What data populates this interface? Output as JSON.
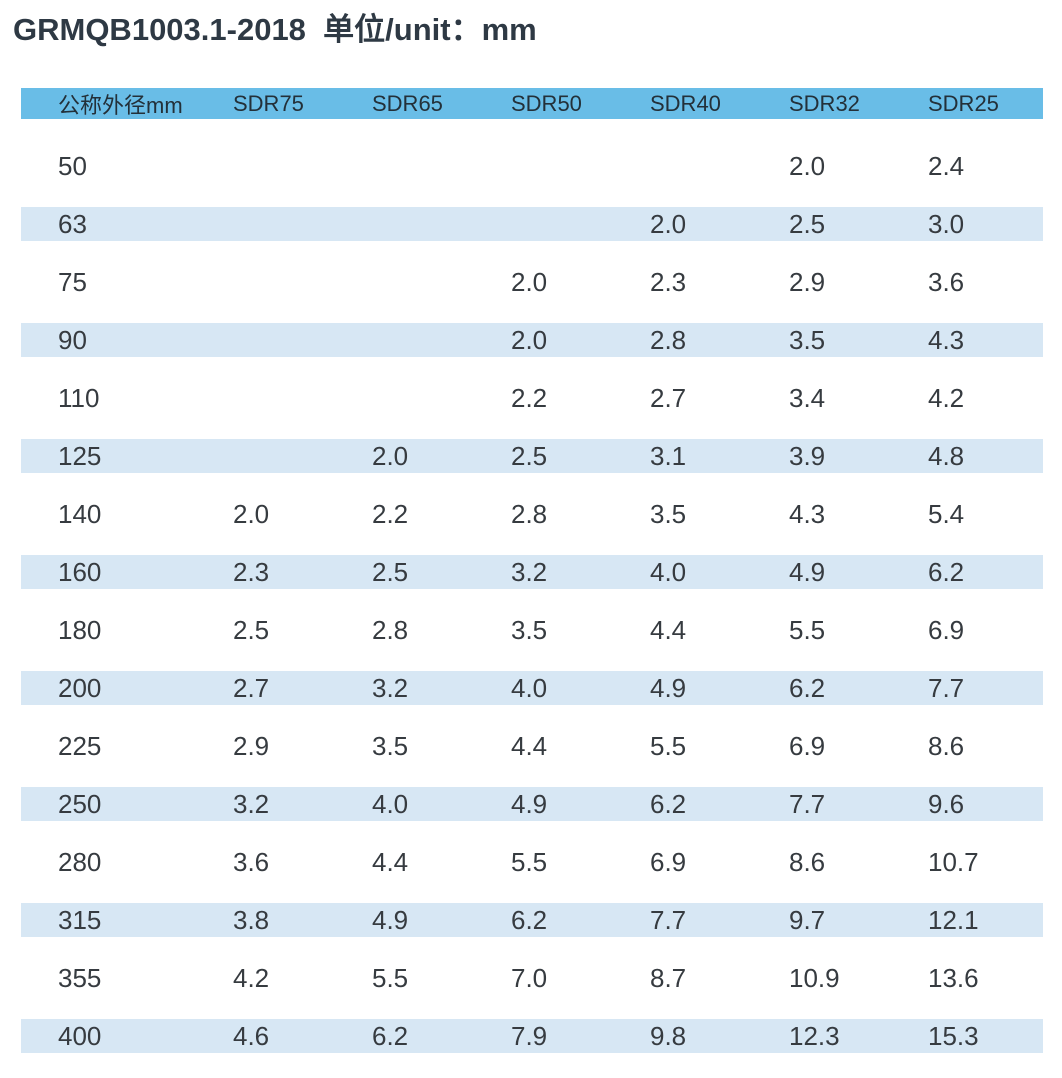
{
  "page": {
    "title": "GRMQB1003.1-2018  单位/unit：mm"
  },
  "table": {
    "columns": [
      {
        "key": "dn",
        "label": "公称外径mm"
      },
      {
        "key": "sdr75",
        "label": "SDR75"
      },
      {
        "key": "sdr65",
        "label": "SDR65"
      },
      {
        "key": "sdr50",
        "label": "SDR50"
      },
      {
        "key": "sdr40",
        "label": "SDR40"
      },
      {
        "key": "sdr32",
        "label": "SDR32"
      },
      {
        "key": "sdr25",
        "label": "SDR25"
      }
    ],
    "rows": [
      [
        "50",
        "",
        "",
        "",
        "",
        "2.0",
        "2.4"
      ],
      [
        "63",
        "",
        "",
        "",
        "2.0",
        "2.5",
        "3.0"
      ],
      [
        "75",
        "",
        "",
        "2.0",
        "2.3",
        "2.9",
        "3.6"
      ],
      [
        "90",
        "",
        "",
        "2.0",
        "2.8",
        "3.5",
        "4.3"
      ],
      [
        "110",
        "",
        "",
        "2.2",
        "2.7",
        "3.4",
        "4.2"
      ],
      [
        "125",
        "",
        "2.0",
        "2.5",
        "3.1",
        "3.9",
        "4.8"
      ],
      [
        "140",
        "2.0",
        "2.2",
        "2.8",
        "3.5",
        "4.3",
        "5.4"
      ],
      [
        "160",
        "2.3",
        "2.5",
        "3.2",
        "4.0",
        "4.9",
        "6.2"
      ],
      [
        "180",
        "2.5",
        "2.8",
        "3.5",
        "4.4",
        "5.5",
        "6.9"
      ],
      [
        "200",
        "2.7",
        "3.2",
        "4.0",
        "4.9",
        "6.2",
        "7.7"
      ],
      [
        "225",
        "2.9",
        "3.5",
        "4.4",
        "5.5",
        "6.9",
        "8.6"
      ],
      [
        "250",
        "3.2",
        "4.0",
        "4.9",
        "6.2",
        "7.7",
        "9.6"
      ],
      [
        "280",
        "3.6",
        "4.4",
        "5.5",
        "6.9",
        "8.6",
        "10.7"
      ],
      [
        "315",
        "3.8",
        "4.9",
        "6.2",
        "7.7",
        "9.7",
        "12.1"
      ],
      [
        "355",
        "4.2",
        "5.5",
        "7.0",
        "8.7",
        "10.9",
        "13.6"
      ],
      [
        "400",
        "4.6",
        "6.2",
        "7.9",
        "9.8",
        "12.3",
        "15.3"
      ]
    ]
  },
  "colors": {
    "header_bg": "#69bde7",
    "stripe_bg": "#d7e7f4",
    "title_text": "#2e3944",
    "header_text": "#233039",
    "body_text": "#363b40"
  }
}
